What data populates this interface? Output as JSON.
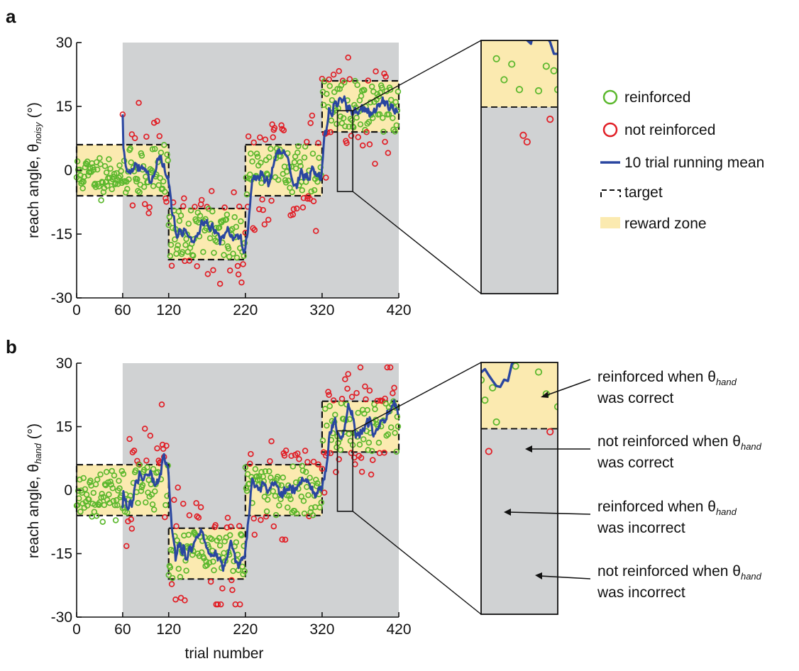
{
  "panels": [
    {
      "letter": "a",
      "ylabel": {
        "main": "reach angle, θ",
        "sub": "noisy",
        "tail": " (°)"
      },
      "inset_range": [
        340,
        360
      ]
    },
    {
      "letter": "b",
      "ylabel": {
        "main": "reach angle, θ",
        "sub": "hand",
        "tail": " (°)"
      },
      "inset_range": [
        340,
        360
      ]
    }
  ],
  "x_axis_label": "trial number",
  "legend": {
    "reinforced": "reinforced",
    "not_reinforced": "not reinforced",
    "running_mean": "10 trial running mean",
    "target": "target",
    "reward_zone": "reward zone"
  },
  "annotations": [
    {
      "line1": "reinforced when θ",
      "sub": "hand",
      "line2": "was correct"
    },
    {
      "line1": "not reinforced when θ",
      "sub": "hand",
      "line2": "was correct"
    },
    {
      "line1": "reinforced when θ",
      "sub": "hand",
      "line2": "was incorrect"
    },
    {
      "line1": "not reinforced when θ",
      "sub": "hand",
      "line2": "was incorrect"
    }
  ],
  "colors": {
    "reinforced": "#5cb82e",
    "not_reinforced": "#e11f26",
    "running_mean": "#2a46a0",
    "reward_zone": "#fbeab0",
    "probe_background": "#d0d2d3",
    "target_line": "#111111"
  },
  "chart_data": {
    "type": "scatter",
    "x": {
      "ticks": [
        0,
        60,
        120,
        220,
        320,
        420
      ],
      "lim": [
        0,
        420
      ]
    },
    "y": {
      "ticks": [
        -30,
        -15,
        0,
        15,
        30
      ],
      "lim": [
        -30,
        30
      ]
    },
    "gray_region": [
      60,
      420
    ],
    "blocks": [
      {
        "x": [
          0,
          120
        ],
        "target": 0,
        "zone": [
          -6,
          6
        ]
      },
      {
        "x": [
          120,
          220
        ],
        "target": -9,
        "zone": [
          -21,
          -9
        ]
      },
      {
        "x": [
          220,
          320
        ],
        "target": 0,
        "zone": [
          -6,
          6
        ]
      },
      {
        "x": [
          320,
          420
        ],
        "target": 15,
        "zone": [
          9,
          21
        ]
      }
    ],
    "inset": {
      "x": [
        340,
        360
      ],
      "y": [
        -5,
        14
      ]
    }
  }
}
